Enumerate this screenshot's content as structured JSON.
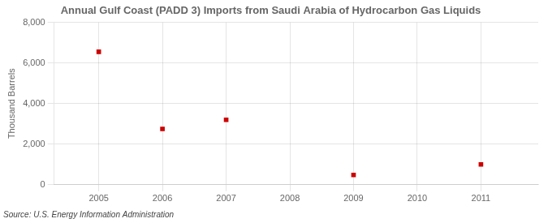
{
  "chart_data": {
    "type": "scatter",
    "title": "Annual Gulf Coast (PADD 3) Imports from Saudi Arabia of Hydrocarbon Gas Liquids",
    "y_label": "Thousand Barrels",
    "annotations": [
      "Source: U.S. Energy Information Administration"
    ],
    "x": [
      2005,
      2006,
      2007,
      2008,
      2009,
      2010,
      2011
    ],
    "values": [
      6550,
      2750,
      3200,
      null,
      480,
      null,
      1000
    ],
    "color": "#cc0000",
    "marker": "square",
    "xlim": [
      2004.3,
      2011.9
    ],
    "xticks": [
      2005,
      2006,
      2007,
      2008,
      2009,
      2010,
      2011
    ],
    "ylim": [
      0,
      8000
    ],
    "yticks": [
      0,
      {
        "value": 2000,
        "label": "2,000"
      },
      {
        "value": 4000,
        "label": "4,000"
      },
      {
        "value": 6000,
        "label": "6,000"
      },
      {
        "value": 8000,
        "label": "8,000"
      }
    ],
    "grid": true
  }
}
